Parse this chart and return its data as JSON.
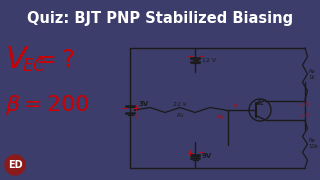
{
  "title": "Quiz: BJT PNP Stabilized Biasing",
  "title_color": "#FFFFFF",
  "title_bg": "#3d3d6b",
  "body_bg": "#d8d8e8",
  "red_color": "#cc0000",
  "circuit_color": "#1a1a1a",
  "annotation_color": "#cc0000",
  "logo_bg": "#8b1a1a",
  "v12": "12 V",
  "v3": "3V",
  "v9": "9V"
}
